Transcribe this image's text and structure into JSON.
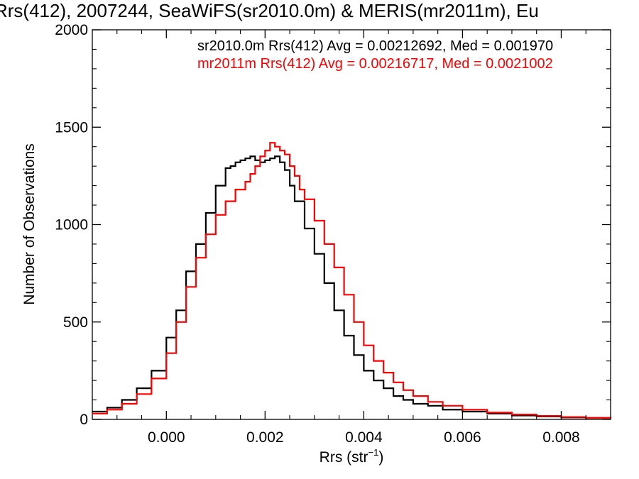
{
  "chart_data": {
    "type": "line",
    "title": "Rrs(412), 2007244, SeaWiFS(sr2010.0m) & MERIS(mr2011m), Eu",
    "xlabel": "Rrs (str",
    "xlabel_sup": "−1",
    "xlabel_close": ")",
    "ylabel": "Number of Observations",
    "xlim": [
      -0.0015,
      0.009
    ],
    "ylim": [
      0,
      2000
    ],
    "x_ticks": [
      0.0,
      0.002,
      0.004,
      0.006,
      0.008
    ],
    "x_tick_labels": [
      "0.000",
      "0.002",
      "0.004",
      "0.006",
      "0.008"
    ],
    "y_ticks": [
      0,
      500,
      1000,
      1500,
      2000
    ],
    "y_tick_labels": [
      "0",
      "500",
      "1000",
      "1500",
      "2000"
    ],
    "grid": false,
    "step": true,
    "annotations": [
      {
        "text": "sr2010.0m Rrs(412) Avg = 0.00212692, Med = 0.001970",
        "color": "#000000"
      },
      {
        "text": "mr2011m Rrs(412) Avg = 0.00216717, Med = 0.0021002",
        "color": "#ff0000"
      }
    ],
    "series": [
      {
        "color": "#000000",
        "x": [
          -0.0015,
          -0.0012,
          -0.0009,
          -0.0006,
          -0.0003,
          0.0,
          0.0002,
          0.0004,
          0.0006,
          0.0008,
          0.001,
          0.0012,
          0.0013,
          0.0014,
          0.0015,
          0.0016,
          0.0017,
          0.0018,
          0.0019,
          0.002,
          0.0021,
          0.0022,
          0.0023,
          0.0024,
          0.0025,
          0.0026,
          0.0028,
          0.003,
          0.0032,
          0.0034,
          0.0036,
          0.0038,
          0.004,
          0.0042,
          0.0044,
          0.0046,
          0.0048,
          0.005,
          0.0053,
          0.0056,
          0.006,
          0.0065,
          0.007,
          0.0075,
          0.008,
          0.0085,
          0.009
        ],
        "y": [
          40,
          60,
          100,
          160,
          250,
          420,
          560,
          760,
          900,
          1060,
          1200,
          1290,
          1300,
          1320,
          1330,
          1340,
          1350,
          1330,
          1320,
          1330,
          1340,
          1350,
          1320,
          1280,
          1200,
          1120,
          980,
          850,
          700,
          560,
          430,
          330,
          250,
          200,
          160,
          120,
          100,
          80,
          70,
          50,
          40,
          30,
          20,
          15,
          10,
          8,
          5
        ]
      },
      {
        "color": "#ff0000",
        "x": [
          -0.0015,
          -0.0012,
          -0.0009,
          -0.0006,
          -0.0003,
          0.0,
          0.0002,
          0.0004,
          0.0006,
          0.0008,
          0.001,
          0.0012,
          0.0014,
          0.0016,
          0.0017,
          0.0018,
          0.0019,
          0.002,
          0.0021,
          0.0022,
          0.0023,
          0.0024,
          0.0025,
          0.0026,
          0.0027,
          0.0028,
          0.003,
          0.0032,
          0.0034,
          0.0036,
          0.0038,
          0.004,
          0.0042,
          0.0044,
          0.0046,
          0.0048,
          0.005,
          0.0053,
          0.0056,
          0.006,
          0.0065,
          0.007,
          0.0075,
          0.008,
          0.0085,
          0.009
        ],
        "y": [
          30,
          50,
          80,
          130,
          210,
          340,
          500,
          680,
          830,
          950,
          1050,
          1120,
          1180,
          1220,
          1260,
          1300,
          1350,
          1380,
          1420,
          1400,
          1380,
          1360,
          1300,
          1250,
          1180,
          1130,
          1020,
          900,
          780,
          640,
          500,
          380,
          300,
          240,
          190,
          150,
          120,
          90,
          70,
          50,
          35,
          25,
          18,
          12,
          8,
          5
        ]
      }
    ]
  }
}
